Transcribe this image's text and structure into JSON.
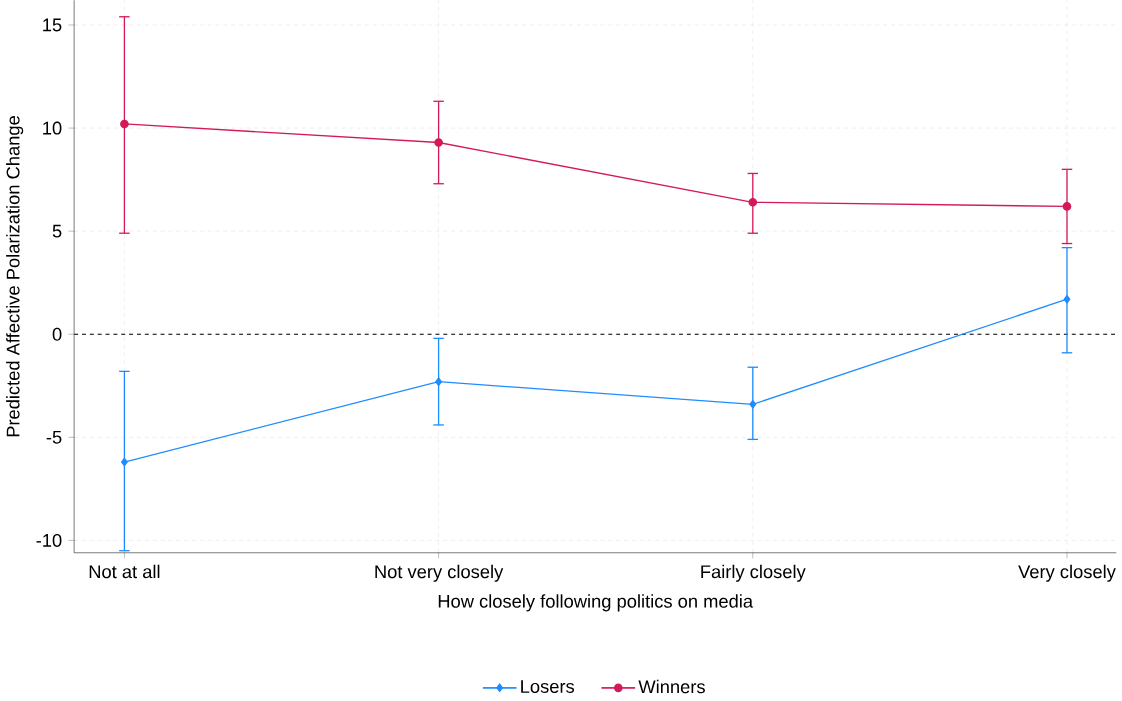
{
  "chart_data": {
    "type": "line",
    "xlabel": "How closely following politics on media",
    "ylabel": "Predicted Affective Polarization Change",
    "categories": [
      "Not at all",
      "Not very closely",
      "Fairly closely",
      "Very closely"
    ],
    "series": [
      {
        "name": "Losers",
        "color": "#1e8cff",
        "marker": "diamond",
        "values": [
          -6.2,
          -2.3,
          -3.4,
          1.7
        ],
        "errors": [
          [
            -10.5,
            -1.8
          ],
          [
            -4.4,
            -0.2
          ],
          [
            -5.1,
            -1.6
          ],
          [
            -0.9,
            4.2
          ]
        ]
      },
      {
        "name": "Winners",
        "color": "#d3195b",
        "marker": "circle",
        "values": [
          10.2,
          9.3,
          6.4,
          6.2
        ],
        "errors": [
          [
            4.9,
            15.4
          ],
          [
            7.3,
            11.3
          ],
          [
            4.9,
            7.8
          ],
          [
            4.4,
            8.0
          ]
        ]
      }
    ],
    "ylim": [
      -10.6,
      16.2
    ],
    "yticks": [
      -10,
      -5,
      0,
      5,
      10,
      15
    ],
    "ref_lines": [
      {
        "axis": "y",
        "value": 0,
        "color": "#000000",
        "line_style": "dashed"
      }
    ],
    "grid": true,
    "legend": "bottom",
    "line_style": "solid"
  }
}
